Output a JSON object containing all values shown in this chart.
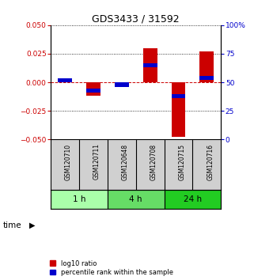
{
  "title": "GDS3433 / 31592",
  "samples": [
    "GSM120710",
    "GSM120711",
    "GSM120648",
    "GSM120708",
    "GSM120715",
    "GSM120716"
  ],
  "log10_ratio": [
    0.001,
    -0.012,
    -0.002,
    0.03,
    -0.048,
    0.027
  ],
  "percentile_rank": [
    52,
    43,
    48,
    65,
    38,
    54
  ],
  "groups": [
    {
      "label": "1 h",
      "indices": [
        0,
        1
      ],
      "color": "#aaffaa"
    },
    {
      "label": "4 h",
      "indices": [
        2,
        3
      ],
      "color": "#66dd66"
    },
    {
      "label": "24 h",
      "indices": [
        4,
        5
      ],
      "color": "#22cc22"
    }
  ],
  "ylim_left": [
    -0.05,
    0.05
  ],
  "ylim_right": [
    0,
    100
  ],
  "yticks_left": [
    -0.05,
    -0.025,
    0,
    0.025,
    0.05
  ],
  "yticks_right": [
    0,
    25,
    50,
    75,
    100
  ],
  "bar_color_red": "#cc0000",
  "bar_color_blue": "#0000cc",
  "bar_width": 0.5,
  "background_color": "#d0d0d0",
  "plot_bg": "#ffffff",
  "left_label_color": "#cc0000",
  "right_label_color": "#0000cc",
  "title_color": "#000000",
  "legend_red_label": "log10 ratio",
  "legend_blue_label": "percentile rank within the sample",
  "time_label": "time"
}
